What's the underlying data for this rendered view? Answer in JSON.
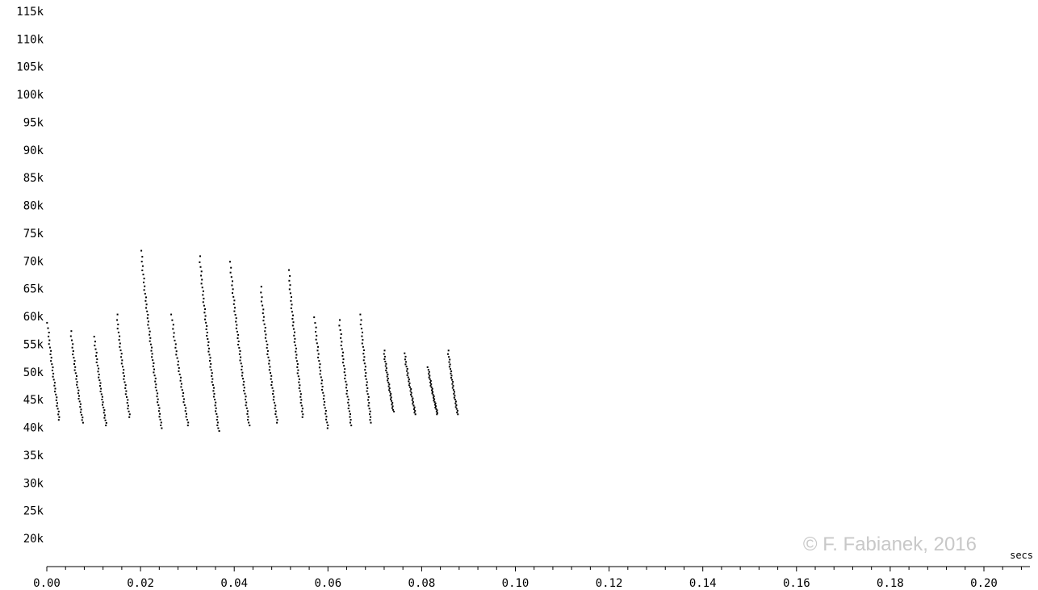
{
  "chart_data": {
    "type": "scatter",
    "title": "",
    "xlabel": "secs",
    "ylabel": "",
    "xlim": [
      0,
      0.21
    ],
    "ylim": [
      17500,
      115000
    ],
    "y_ticks": [
      "115k",
      "110k",
      "105k",
      "100k",
      "95k",
      "90k",
      "85k",
      "80k",
      "75k",
      "70k",
      "65k",
      "60k",
      "55k",
      "50k",
      "45k",
      "40k",
      "35k",
      "30k",
      "25k",
      "20k"
    ],
    "y_tick_values": [
      115000,
      110000,
      105000,
      100000,
      95000,
      90000,
      85000,
      80000,
      75000,
      70000,
      65000,
      60000,
      55000,
      50000,
      45000,
      40000,
      35000,
      30000,
      25000,
      20000
    ],
    "x_ticks": [
      "0.00",
      "0.02",
      "0.04",
      "0.06",
      "0.08",
      "0.10",
      "0.12",
      "0.14",
      "0.16",
      "0.18",
      "0.20"
    ],
    "x_tick_values": [
      0,
      0.02,
      0.04,
      0.06,
      0.08,
      0.1,
      0.12,
      0.14,
      0.16,
      0.18,
      0.2
    ],
    "grid": false,
    "point_color": "#000000",
    "segments": [
      {
        "x_start": 0.0,
        "x_end": 0.0025,
        "y_start": 59000,
        "y_end": 41500
      },
      {
        "x_start": 0.005,
        "x_end": 0.0075,
        "y_start": 57500,
        "y_end": 41000
      },
      {
        "x_start": 0.01,
        "x_end": 0.0125,
        "y_start": 56500,
        "y_end": 40500
      },
      {
        "x_start": 0.0148,
        "x_end": 0.0175,
        "y_start": 60500,
        "y_end": 42000
      },
      {
        "x_start": 0.02,
        "x_end": 0.0243,
        "y_start": 72000,
        "y_end": 40000
      },
      {
        "x_start": 0.0265,
        "x_end": 0.03,
        "y_start": 60500,
        "y_end": 40500
      },
      {
        "x_start": 0.0325,
        "x_end": 0.0365,
        "y_start": 71000,
        "y_end": 39500
      },
      {
        "x_start": 0.039,
        "x_end": 0.043,
        "y_start": 70000,
        "y_end": 40500
      },
      {
        "x_start": 0.0455,
        "x_end": 0.049,
        "y_start": 65500,
        "y_end": 41000
      },
      {
        "x_start": 0.0515,
        "x_end": 0.0545,
        "y_start": 68500,
        "y_end": 42000
      },
      {
        "x_start": 0.057,
        "x_end": 0.0598,
        "y_start": 60000,
        "y_end": 40000
      },
      {
        "x_start": 0.0623,
        "x_end": 0.0648,
        "y_start": 59500,
        "y_end": 40500
      },
      {
        "x_start": 0.0668,
        "x_end": 0.069,
        "y_start": 60500,
        "y_end": 41000
      },
      {
        "x_start": 0.0718,
        "x_end": 0.0738,
        "y_start": 54000,
        "y_end": 43000
      },
      {
        "x_start": 0.0762,
        "x_end": 0.0785,
        "y_start": 53500,
        "y_end": 42500
      },
      {
        "x_start": 0.0812,
        "x_end": 0.0832,
        "y_start": 51000,
        "y_end": 42500
      },
      {
        "x_start": 0.0855,
        "x_end": 0.0875,
        "y_start": 54000,
        "y_end": 42500
      }
    ]
  },
  "copyright": "© F. Fabianek, 2016"
}
